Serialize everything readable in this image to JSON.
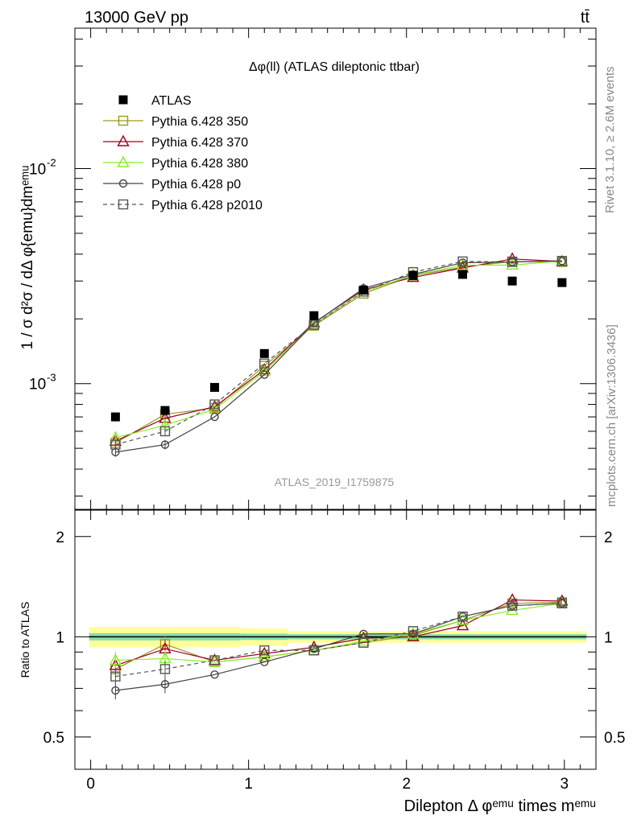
{
  "header": {
    "left": "13000 GeV pp",
    "right": "tt̄"
  },
  "side_labels": {
    "rivet": "Rivet 3.1.10, ≥ 2.6M events",
    "mcplots": "mcplots.cern.ch [arXiv:1306.3436]"
  },
  "watermark": "ATLAS_2019_I1759875",
  "chart_data": {
    "type": "line",
    "title": "Δφ(ll) (ATLAS dileptonic ttbar)",
    "xlabel": "Dilepton Δ φᵉᵐᵘ times mᵉᵐᵘ",
    "ylabel": "1 / σ  d²σ / dΔ φ{emu}dmᵉᵐᵘ",
    "ratio_ylabel": "Ratio to ATLAS",
    "xlim": [
      -0.1,
      3.2
    ],
    "ylim": [
      0.00026,
      0.045
    ],
    "yscale": "log",
    "ratio_ylim": [
      0.4,
      2.4
    ],
    "ratio_yscale": "log",
    "x_ticks": [
      "0",
      "1",
      "2",
      "3"
    ],
    "y_ticks": [
      {
        "value": 0.001,
        "label": "10",
        "exp": "-3"
      },
      {
        "value": 0.01,
        "label": "10",
        "exp": "-2"
      }
    ],
    "ratio_ticks": [
      {
        "value": 0.5,
        "label": "0.5"
      },
      {
        "value": 1,
        "label": "1"
      },
      {
        "value": 2,
        "label": "2"
      }
    ],
    "x": [
      0.157,
      0.471,
      0.785,
      1.1,
      1.414,
      1.728,
      2.042,
      2.356,
      2.67,
      2.985
    ],
    "data": {
      "name": "ATLAS",
      "values": [
        0.0007,
        0.00075,
        0.00096,
        0.00138,
        0.00207,
        0.00272,
        0.00318,
        0.00322,
        0.003,
        0.00295
      ],
      "ratio_band": [
        {
          "x": [
            -0.01,
            0.95
          ],
          "inner": 0.025,
          "outer": 0.07
        },
        {
          "x": [
            0.95,
            1.25
          ],
          "inner": 0.022,
          "outer": 0.06
        },
        {
          "x": [
            1.25,
            3.14
          ],
          "inner": 0.018,
          "outer": 0.04
        }
      ]
    },
    "series": [
      {
        "name": "Pythia 6.428 350",
        "color": "#9a9a22",
        "marker": "square-open",
        "dash": false,
        "values": [
          0.00053,
          0.00072,
          0.00077,
          0.00121,
          0.00186,
          0.00262,
          0.00318,
          0.00348,
          0.0037,
          0.00368
        ],
        "ratio": [
          0.8,
          0.95,
          0.84,
          0.87,
          0.91,
          0.96,
          1.01,
          1.12,
          1.26,
          1.27
        ]
      },
      {
        "name": "Pythia 6.428 370",
        "color": "#a00020",
        "marker": "triangle-open",
        "dash": false,
        "values": [
          0.00054,
          0.00069,
          0.00078,
          0.00116,
          0.00192,
          0.00273,
          0.00312,
          0.00345,
          0.0038,
          0.0037
        ],
        "ratio": [
          0.82,
          0.92,
          0.85,
          0.89,
          0.93,
          0.99,
          1.0,
          1.08,
          1.29,
          1.28
        ]
      },
      {
        "name": "Pythia 6.428 380",
        "color": "#88ee22",
        "marker": "triangle-open",
        "dash": false,
        "values": [
          0.00056,
          0.00064,
          0.00076,
          0.00114,
          0.00188,
          0.00267,
          0.00319,
          0.00355,
          0.00356,
          0.00372
        ],
        "ratio": [
          0.85,
          0.86,
          0.84,
          0.87,
          0.91,
          0.97,
          1.02,
          1.12,
          1.2,
          1.26
        ]
      },
      {
        "name": "Pythia 6.428 p0",
        "color": "#444444",
        "marker": "circle-open",
        "dash": false,
        "values": [
          0.00048,
          0.00052,
          0.0007,
          0.0011,
          0.00191,
          0.00277,
          0.00322,
          0.00365,
          0.00368,
          0.00372
        ],
        "ratio": [
          0.69,
          0.72,
          0.77,
          0.84,
          0.92,
          1.02,
          1.02,
          1.15,
          1.24,
          1.26
        ]
      },
      {
        "name": "Pythia 6.428 p2010",
        "color": "#555555",
        "marker": "square-open",
        "dash": true,
        "values": [
          0.00052,
          0.0006,
          0.0008,
          0.00124,
          0.00188,
          0.00268,
          0.0033,
          0.0037,
          0.00368,
          0.00372
        ],
        "ratio": [
          0.76,
          0.8,
          0.85,
          0.91,
          0.91,
          0.96,
          1.04,
          1.15,
          1.24,
          1.26
        ]
      }
    ],
    "legend_position": "top-left"
  }
}
